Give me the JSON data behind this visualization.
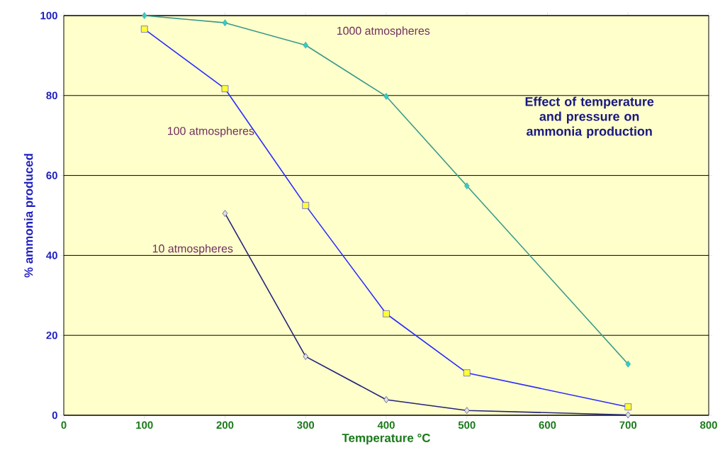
{
  "chart_data": {
    "type": "line",
    "title": "Effect of temperature and pressure on ammonia production",
    "xlabel": "Temperature °C",
    "ylabel": "% ammonia produced",
    "series": [
      {
        "name": "1000 atmospheres",
        "color": "#3a9a8a",
        "marker": "diamond",
        "x": [
          100,
          200,
          300,
          400,
          500,
          700
        ],
        "values": [
          100,
          98.2,
          92.6,
          79.8,
          57.4,
          12.8
        ]
      },
      {
        "name": "100 atmospheres",
        "color": "#2a2aff",
        "marker": "square",
        "x": [
          100,
          200,
          300,
          400,
          500,
          700
        ],
        "values": [
          96.6,
          81.7,
          52.5,
          25.4,
          10.6,
          2.1
        ]
      },
      {
        "name": "10 atmospheres",
        "color": "#23237a",
        "marker": "diamond",
        "x": [
          200,
          300,
          400,
          500,
          700
        ],
        "values": [
          50.5,
          14.7,
          3.9,
          1.2,
          0.1
        ]
      }
    ],
    "xlim": [
      0,
      800
    ],
    "ylim": [
      0,
      100
    ],
    "xticks": [
      0,
      100,
      200,
      300,
      400,
      500,
      600,
      700,
      800
    ],
    "yticks": [
      0,
      20,
      40,
      60,
      80,
      100
    ],
    "grid": "y",
    "line_style": "solid"
  }
}
